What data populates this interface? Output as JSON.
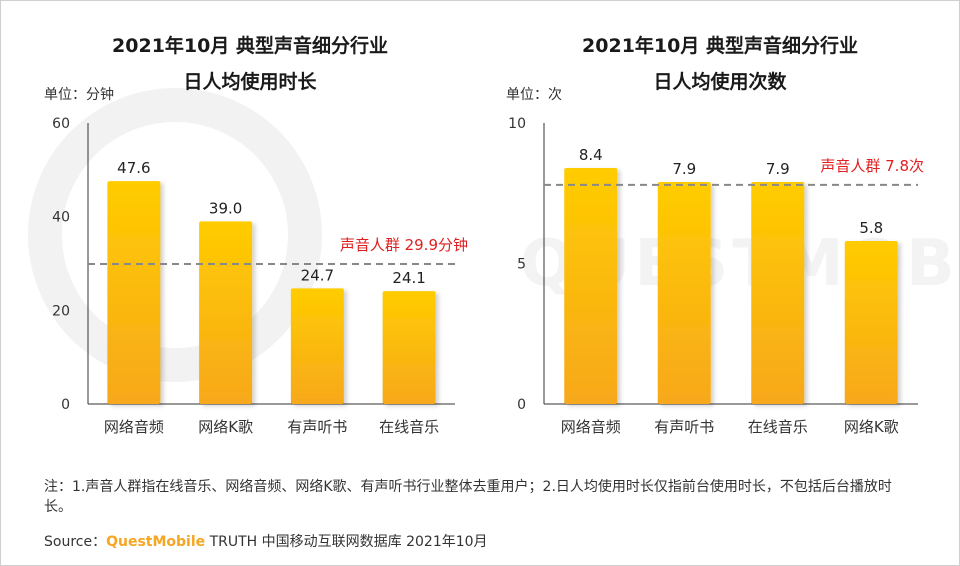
{
  "chart_data": [
    {
      "type": "bar",
      "title_line1": "2021年10月 典型声音细分行业",
      "title_line2": "日人均使用时长",
      "unit_label": "单位：分钟",
      "categories": [
        "网络音频",
        "网络K歌",
        "有声听书",
        "在线音乐"
      ],
      "values": [
        47.6,
        39.0,
        24.7,
        24.1
      ],
      "value_labels": [
        "47.6",
        "39.0",
        "24.7",
        "24.1"
      ],
      "ylim": [
        0,
        60
      ],
      "yticks": [
        0,
        20,
        40,
        60
      ],
      "reference_line": {
        "value": 29.9,
        "label": "声音人群 29.9分钟"
      },
      "grid": false
    },
    {
      "type": "bar",
      "title_line1": "2021年10月 典型声音细分行业",
      "title_line2": "日人均使用次数",
      "unit_label": "单位：次",
      "categories": [
        "网络音频",
        "有声听书",
        "在线音乐",
        "网络K歌"
      ],
      "values": [
        8.4,
        7.9,
        7.9,
        5.8
      ],
      "value_labels": [
        "8.4",
        "7.9",
        "7.9",
        "5.8"
      ],
      "ylim": [
        0,
        10
      ],
      "yticks": [
        0,
        5,
        10
      ],
      "reference_line": {
        "value": 7.8,
        "label": "声音人群 7.8次"
      },
      "grid": false
    }
  ],
  "colors": {
    "bar_top": "#ffcc00",
    "bar_bottom": "#f7a81b",
    "reference_line": "#888888",
    "reference_label": "#e02020",
    "axis": "#333333",
    "brand": "#f5a623"
  },
  "footer": {
    "note": "注：1.声音人群指在线音乐、网络音频、网络K歌、有声听书行业整体去重用户；2.日人均使用时长仅指前台使用时长，不包括后台播放时长。",
    "source_prefix": "Source：",
    "source_brand": "QuestMobile",
    "source_suffix": " TRUTH 中国移动互联网数据库 2021年10月"
  }
}
